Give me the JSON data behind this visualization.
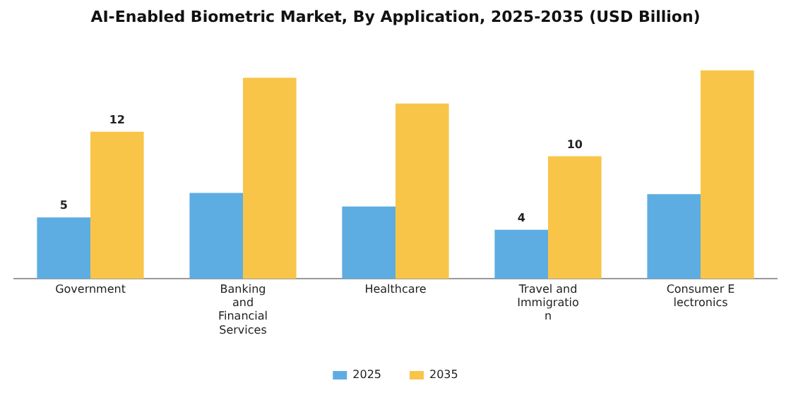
{
  "chart_data": {
    "type": "bar",
    "title": "AI-Enabled Biometric Market, By Application, 2025-2035 (USD Billion)",
    "categories": [
      "Government",
      "Banking and Financial Services",
      "Healthcare",
      "Travel and Immigration",
      "Consumer Electronics"
    ],
    "series": [
      {
        "name": "2025",
        "color": "#5dade2",
        "values": [
          5,
          7,
          5.9,
          4,
          6.9
        ],
        "value_labels": [
          "5",
          null,
          null,
          "4",
          null
        ]
      },
      {
        "name": "2035",
        "color": "#f8c548",
        "values": [
          12,
          16.4,
          14.3,
          10,
          17
        ],
        "value_labels": [
          "12",
          null,
          null,
          "10",
          null
        ]
      }
    ],
    "tick_labels": "x",
    "grid": false,
    "legend": "bottom"
  }
}
